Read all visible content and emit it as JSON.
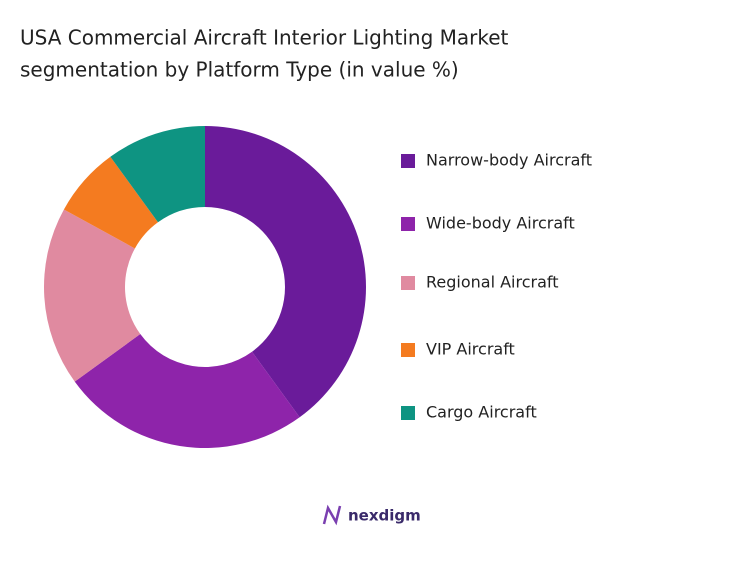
{
  "chart_data": {
    "type": "donut",
    "title": "USA Commercial Aircraft Interior Lighting Market",
    "subtitle": "segmentation by Platform Type (in value %)",
    "categories": [
      "Narrow-body Aircraft",
      "Wide-body Aircraft",
      "Regional Aircraft",
      "VIP Aircraft",
      "Cargo Aircraft"
    ],
    "values": [
      40,
      25,
      18,
      7,
      10
    ],
    "colors": [
      "#6a1b9a",
      "#8e24aa",
      "#e08aa0",
      "#f47b20",
      "#0e9482"
    ],
    "legend": "right"
  },
  "brand": "nexdigm"
}
